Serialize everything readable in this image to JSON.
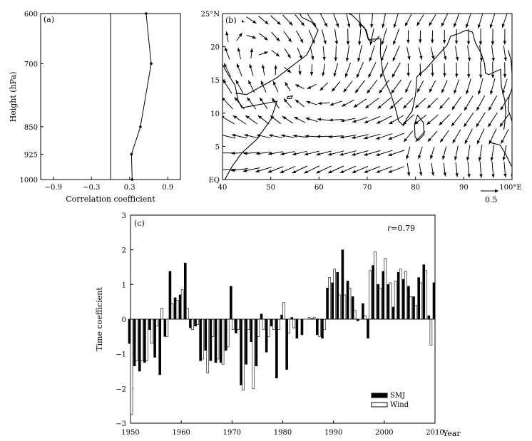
{
  "chart_data": [
    {
      "type": "line",
      "panel_label": "(a)",
      "xlabel": "Correlation coefficient",
      "ylabel": "Height (hPa)",
      "xlim": [
        -1.1,
        1.1
      ],
      "x_ticks": [
        -0.9,
        -0.3,
        0.3,
        0.9
      ],
      "x_tick_labels": [
        "−0.9",
        "−0.3",
        "0.3",
        "0.9"
      ],
      "y_levels": [
        600,
        700,
        850,
        925,
        1000
      ],
      "y_scale": "log-pressure (inverted)",
      "reference_line_x": 0,
      "series": [
        {
          "x": [
            0.56,
            0.64,
            0.47,
            0.33,
            0.34
          ],
          "y": [
            600,
            700,
            850,
            925,
            1000
          ]
        }
      ]
    },
    {
      "type": "vector-field-map",
      "panel_label": "(b)",
      "x_ticks": [
        40,
        50,
        60,
        70,
        80,
        90,
        100
      ],
      "x_tick_labels": [
        "40",
        "50",
        "60",
        "70",
        "80",
        "90",
        "100°E"
      ],
      "y_ticks": [
        0,
        5,
        10,
        15,
        20,
        25
      ],
      "y_tick_labels": [
        "EQ",
        "5",
        "10",
        "15",
        "20",
        "25°N"
      ],
      "xlim": [
        40,
        100
      ],
      "ylim": [
        0,
        25
      ],
      "reference_vector": {
        "value": 0.5,
        "label": "0.5"
      },
      "grid": false
    },
    {
      "type": "bar",
      "panel_label": "(c)",
      "annotation_r": "r",
      "annotation_value": "=0.79",
      "xlabel": "Year",
      "ylabel": "Time coefficient",
      "xlim": [
        1950,
        2010
      ],
      "ylim": [
        -3,
        3
      ],
      "x_ticks": [
        1950,
        1960,
        1970,
        1980,
        1990,
        2000,
        2010
      ],
      "y_ticks": [
        -3,
        -2,
        -1,
        0,
        1,
        2,
        3
      ],
      "legend_position": "bottom-right",
      "years": [
        1950,
        1951,
        1952,
        1953,
        1954,
        1955,
        1956,
        1957,
        1958,
        1959,
        1960,
        1961,
        1962,
        1963,
        1964,
        1965,
        1966,
        1967,
        1968,
        1969,
        1970,
        1971,
        1972,
        1973,
        1974,
        1975,
        1976,
        1977,
        1978,
        1979,
        1980,
        1981,
        1982,
        1983,
        1984,
        1985,
        1986,
        1987,
        1988,
        1989,
        1990,
        1991,
        1992,
        1993,
        1994,
        1995,
        1996,
        1997,
        1998,
        1999,
        2000,
        2001,
        2002,
        2003,
        2004,
        2005,
        2006,
        2007,
        2008,
        2009,
        2010
      ],
      "series": [
        {
          "name": "SMJ",
          "fill": "#000000",
          "values": [
            -0.7,
            -1.35,
            -1.5,
            -1.25,
            -0.3,
            -1.1,
            -1.6,
            -0.5,
            1.38,
            0.62,
            0.7,
            1.62,
            -0.25,
            -0.2,
            -1.2,
            -0.9,
            -1.2,
            -1.25,
            -1.25,
            -0.9,
            0.95,
            -0.4,
            -1.9,
            -1.3,
            -0.65,
            -1.35,
            0.15,
            -0.95,
            -0.2,
            -1.7,
            0.12,
            -1.45,
            0.05,
            -0.55,
            -0.45,
            0.0,
            0.02,
            -0.45,
            -0.55,
            0.9,
            1.05,
            1.35,
            2.0,
            1.1,
            0.65,
            -0.05,
            0.45,
            -0.55,
            1.55,
            1.0,
            1.38,
            1.0,
            0.35,
            1.35,
            1.15,
            0.95,
            0.65,
            1.2,
            1.57,
            0.1,
            1.05
          ]
        },
        {
          "name": "Wind",
          "fill": "#ffffff",
          "values": [
            -2.75,
            -1.2,
            -1.2,
            -1.2,
            -0.7,
            -0.2,
            0.32,
            -0.5,
            0.45,
            0.55,
            0.85,
            0.32,
            -0.3,
            -0.15,
            -1.15,
            -1.55,
            -0.5,
            -1.15,
            -1.3,
            -0.8,
            -0.3,
            -0.3,
            -2.05,
            -0.3,
            -2.0,
            -0.5,
            -0.3,
            -0.5,
            -0.3,
            -0.3,
            0.48,
            -0.4,
            -0.25,
            0.0,
            0.0,
            0.05,
            0.05,
            -0.5,
            -0.3,
            1.2,
            1.45,
            0.7,
            0.7,
            0.9,
            0.25,
            0.0,
            0.1,
            1.4,
            1.95,
            0.9,
            1.75,
            1.05,
            1.1,
            1.45,
            1.38,
            0.65,
            0.4,
            1.05,
            1.4,
            -0.75,
            0.0
          ]
        }
      ]
    }
  ]
}
